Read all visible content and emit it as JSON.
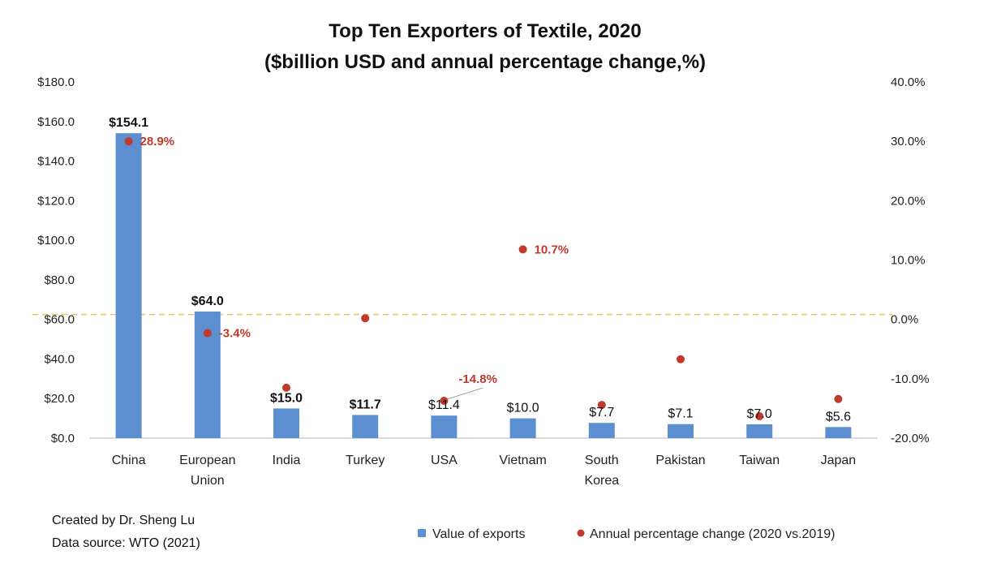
{
  "chart_data": {
    "type": "bar",
    "title": "Top Ten Exporters of Textile, 2020",
    "subtitle": "($billion USD and annual percentage change,%)",
    "categories": [
      [
        "China"
      ],
      [
        "European",
        "Union"
      ],
      [
        "India"
      ],
      [
        "Turkey"
      ],
      [
        "USA"
      ],
      [
        "Vietnam"
      ],
      [
        "South",
        "Korea"
      ],
      [
        "Pakistan"
      ],
      [
        "Taiwan"
      ],
      [
        "Japan"
      ]
    ],
    "series": [
      {
        "name": "Value of exports",
        "type": "bar",
        "axis": "left",
        "color": "#5b8fd0",
        "values": [
          154.1,
          64.0,
          15.0,
          11.7,
          11.4,
          10.0,
          7.7,
          7.1,
          7.0,
          5.6
        ],
        "labels": [
          "$154.1",
          "$64.0",
          "$15.0",
          "$11.7",
          "$11.4",
          "$10.0",
          "$7.7",
          "$7.1",
          "$7.0",
          "$5.6"
        ],
        "bold_labels": [
          true,
          true,
          true,
          true,
          false,
          false,
          false,
          false,
          false,
          false
        ]
      },
      {
        "name": "Annual percentage change (2020 vs.2019)",
        "type": "scatter",
        "axis": "right",
        "color": "#c0392b",
        "values": [
          28.9,
          -3.4,
          -12.6,
          -0.9,
          -14.8,
          10.7,
          -15.5,
          -7.8,
          -17.4,
          -14.5
        ],
        "labels": [
          "28.9%",
          "-3.4%",
          "",
          "",
          "-14.8%",
          "10.7%",
          "",
          "",
          "",
          ""
        ]
      }
    ],
    "y_left": {
      "ylim": [
        0,
        180
      ],
      "ticks": [
        "$0.0",
        "$20.0",
        "$40.0",
        "$60.0",
        "$80.0",
        "$100.0",
        "$120.0",
        "$140.0",
        "$160.0",
        "$180.0"
      ]
    },
    "y_right": {
      "ylim": [
        -20,
        40
      ],
      "ticks": [
        "-20.0%",
        "-10.0%",
        "0.0%",
        "10.0%",
        "20.0%",
        "30.0%",
        "40.0%"
      ]
    },
    "reference_line": {
      "axis": "right",
      "value": 0,
      "style": "dashed",
      "color": "#e6c84a"
    },
    "grid": false,
    "legend": "bottom-right",
    "notes": [
      "Created by Dr. Sheng Lu",
      "Data source: WTO (2021)"
    ]
  }
}
